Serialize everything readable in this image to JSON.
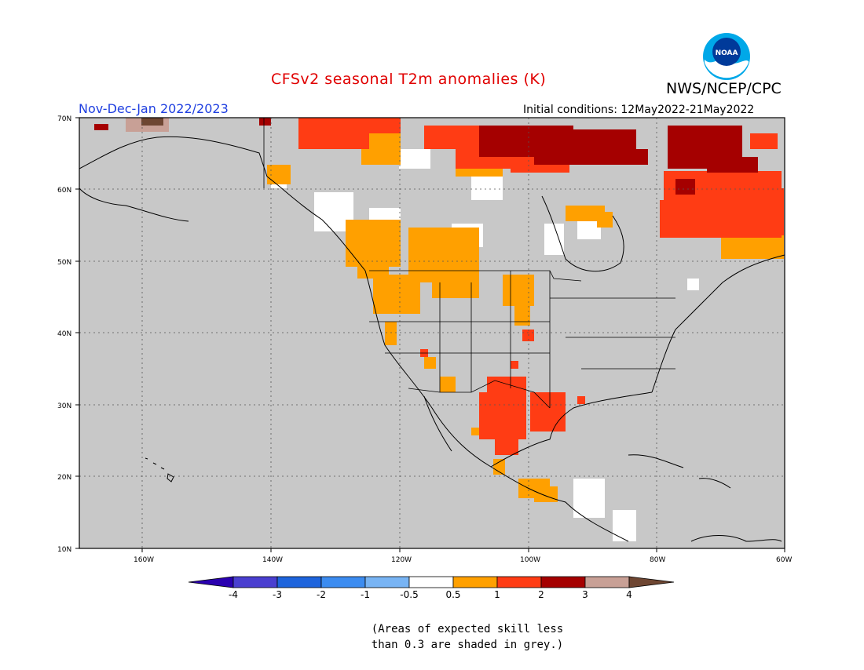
{
  "title": "CFSv2 seasonal T2m anomalies (K)",
  "organization": "NWS/NCEP/CPC",
  "logo_text": "NOAA",
  "period": "Nov-Dec-Jan 2022/2023",
  "initial_conditions": "Initial conditions: 12May2022-21May2022",
  "lat_labels": [
    "70N",
    "60N",
    "50N",
    "40N",
    "30N",
    "20N",
    "10N"
  ],
  "lon_labels": [
    "160W",
    "140W",
    "120W",
    "100W",
    "80W",
    "60W"
  ],
  "colorbar": {
    "labels": [
      "-4",
      "-3",
      "-2",
      "-1",
      "-0.5",
      "0.5",
      "1",
      "2",
      "3",
      "4"
    ],
    "colors": [
      "#2a00b0",
      "#4a3fd0",
      "#1e64dc",
      "#3c8cf0",
      "#78b4f4",
      "#ffffff",
      "#ffa000",
      "#ff3c14",
      "#a50000",
      "#c8a096",
      "#6e4632"
    ]
  },
  "footnote_line1": "(Areas of expected skill less",
  "footnote_line2": "than 0.3 are shaded in grey.)",
  "colors": {
    "skill_mask": "#c8c8c8",
    "ocean_land_background": "#c8c8c8",
    "title": "#e00000",
    "period": "#1f3fe0"
  },
  "anomaly_regions": [
    {
      "category": "3 to 4",
      "location": "northern Alaska / Yukon coast"
    },
    {
      "category": "2 to 3",
      "location": "Nunavut, Hudson Bay north, Baffin Island, Greenland west"
    },
    {
      "category": "1 to 2",
      "location": "northern Canada, Quebec/Labrador, Texas, northern Mexico"
    },
    {
      "category": "0.5 to 1",
      "location": "Pacific Northwest, western Canada, northern Plains, southern Mexico"
    },
    {
      "category": "-0.5 to 0.5",
      "location": "scattered white areas in Canada and Central America"
    }
  ]
}
